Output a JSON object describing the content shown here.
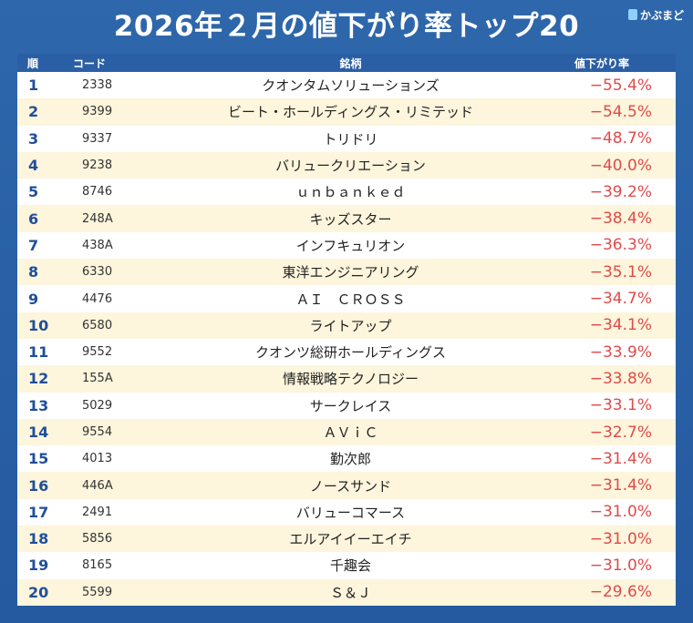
{
  "title": "2026年２月の値下がり率トップ20",
  "logo": {
    "text": "かぶまど"
  },
  "colors": {
    "background": "#2a62a6",
    "header": "#2b5fa5",
    "stripe": "#fdf5dc",
    "rate": "#e04a4a",
    "rank": "#1f4f9a"
  },
  "table": {
    "headers": {
      "rank": "順",
      "code": "コード",
      "name": "銘柄",
      "rate": "値下がり率"
    },
    "rows": [
      {
        "rank": "1",
        "code": "2338",
        "name": "クオンタムソリューションズ",
        "rate": "−55.4%"
      },
      {
        "rank": "2",
        "code": "9399",
        "name": "ビート・ホールディングス・リミテッド",
        "rate": "−54.5%"
      },
      {
        "rank": "3",
        "code": "9337",
        "name": "トリドリ",
        "rate": "−48.7%"
      },
      {
        "rank": "4",
        "code": "9238",
        "name": "バリュークリエーション",
        "rate": "−40.0%"
      },
      {
        "rank": "5",
        "code": "8746",
        "name": "ｕｎｂａｎｋｅｄ",
        "rate": "−39.2%"
      },
      {
        "rank": "6",
        "code": "248A",
        "name": "キッズスター",
        "rate": "−38.4%"
      },
      {
        "rank": "7",
        "code": "438A",
        "name": "インフキュリオン",
        "rate": "−36.3%"
      },
      {
        "rank": "8",
        "code": "6330",
        "name": "東洋エンジニアリング",
        "rate": "−35.1%"
      },
      {
        "rank": "9",
        "code": "4476",
        "name": "ＡＩ　ＣＲＯＳＳ",
        "rate": "−34.7%"
      },
      {
        "rank": "10",
        "code": "6580",
        "name": "ライトアップ",
        "rate": "−34.1%"
      },
      {
        "rank": "11",
        "code": "9552",
        "name": "クオンツ総研ホールディングス",
        "rate": "−33.9%"
      },
      {
        "rank": "12",
        "code": "155A",
        "name": "情報戦略テクノロジー",
        "rate": "−33.8%"
      },
      {
        "rank": "13",
        "code": "5029",
        "name": "サークレイス",
        "rate": "−33.1%"
      },
      {
        "rank": "14",
        "code": "9554",
        "name": "ＡＶｉＣ",
        "rate": "−32.7%"
      },
      {
        "rank": "15",
        "code": "4013",
        "name": "勤次郎",
        "rate": "−31.4%"
      },
      {
        "rank": "16",
        "code": "446A",
        "name": "ノースサンド",
        "rate": "−31.4%"
      },
      {
        "rank": "17",
        "code": "2491",
        "name": "バリューコマース",
        "rate": "−31.0%"
      },
      {
        "rank": "18",
        "code": "5856",
        "name": "エルアイイーエイチ",
        "rate": "−31.0%"
      },
      {
        "rank": "19",
        "code": "8165",
        "name": "千趣会",
        "rate": "−31.0%"
      },
      {
        "rank": "20",
        "code": "5599",
        "name": "Ｓ＆Ｊ",
        "rate": "−29.6%"
      }
    ]
  }
}
